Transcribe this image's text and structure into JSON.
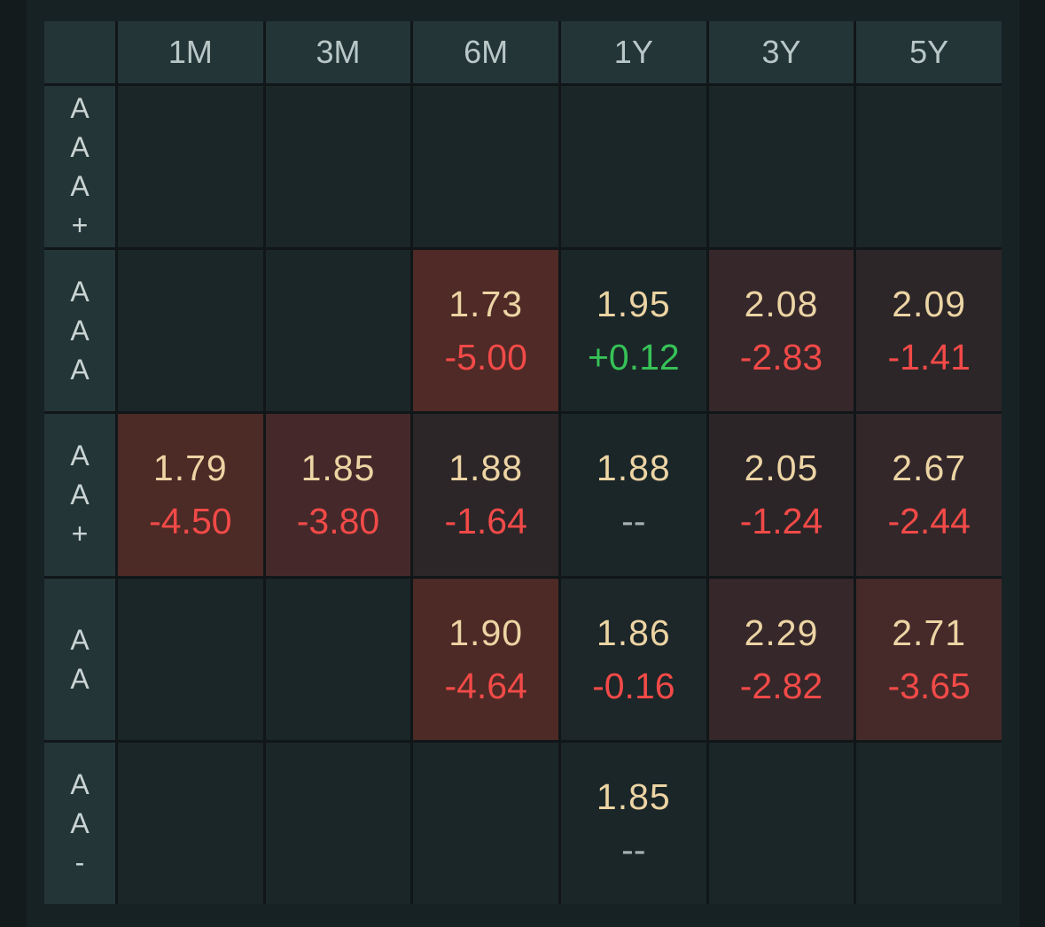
{
  "table": {
    "columns": [
      "1M",
      "3M",
      "6M",
      "1Y",
      "3Y",
      "5Y"
    ],
    "rows": [
      {
        "label": [
          "A",
          "A",
          "A",
          "+"
        ],
        "cells": [
          null,
          null,
          null,
          null,
          null,
          null
        ]
      },
      {
        "label": [
          "A",
          "A",
          "A"
        ],
        "cells": [
          null,
          null,
          {
            "rate": "1.73",
            "change": "-5.00",
            "dir": "neg",
            "bg": "#4f2a26"
          },
          {
            "rate": "1.95",
            "change": "+0.12",
            "dir": "pos",
            "bg": "#1b2628"
          },
          {
            "rate": "2.08",
            "change": "-2.83",
            "dir": "neg",
            "bg": "#36272a"
          },
          {
            "rate": "2.09",
            "change": "-1.41",
            "dir": "neg",
            "bg": "#2c2628"
          }
        ]
      },
      {
        "label": [
          "A",
          "A",
          "+"
        ],
        "cells": [
          {
            "rate": "1.79",
            "change": "-4.50",
            "dir": "neg",
            "bg": "#4c2a26"
          },
          {
            "rate": "1.85",
            "change": "-3.80",
            "dir": "neg",
            "bg": "#45292a"
          },
          {
            "rate": "1.88",
            "change": "-1.64",
            "dir": "neg",
            "bg": "#2c2628"
          },
          {
            "rate": "1.88",
            "change": "--",
            "dir": "flat",
            "bg": "#1b2628"
          },
          {
            "rate": "2.05",
            "change": "-1.24",
            "dir": "neg",
            "bg": "#2b2528"
          },
          {
            "rate": "2.67",
            "change": "-2.44",
            "dir": "neg",
            "bg": "#33272a"
          }
        ]
      },
      {
        "label": [
          "A",
          "A"
        ],
        "cells": [
          null,
          null,
          {
            "rate": "1.90",
            "change": "-4.64",
            "dir": "neg",
            "bg": "#4d2a26"
          },
          {
            "rate": "1.86",
            "change": "-0.16",
            "dir": "neg",
            "bg": "#1d2628"
          },
          {
            "rate": "2.29",
            "change": "-2.82",
            "dir": "neg",
            "bg": "#36272a"
          },
          {
            "rate": "2.71",
            "change": "-3.65",
            "dir": "neg",
            "bg": "#462a2a"
          }
        ]
      },
      {
        "label": [
          "A",
          "A",
          "-"
        ],
        "cells": [
          null,
          null,
          null,
          {
            "rate": "1.85",
            "change": "--",
            "dir": "flat",
            "bg": "#1b2628"
          },
          null,
          null
        ]
      }
    ]
  },
  "colors": {
    "rate_text": "#ecd4a4",
    "negative": "#f24a48",
    "positive": "#36c257",
    "neutral": "#a7b1b1",
    "header_bg": "#243538",
    "cell_bg": "#1b2628"
  }
}
